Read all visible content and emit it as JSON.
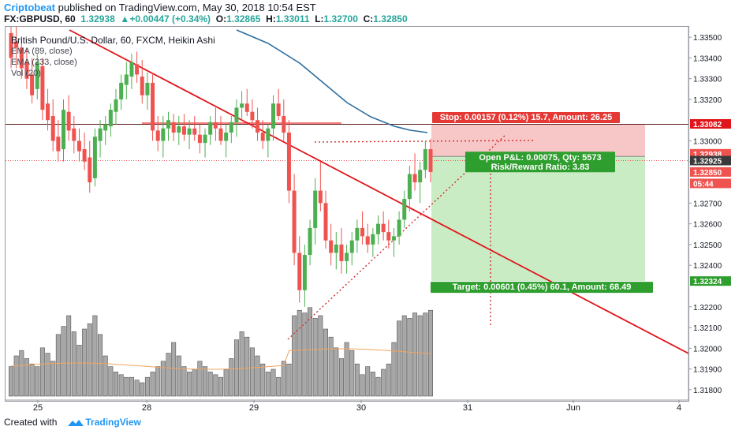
{
  "header": {
    "brand": "Criptobeat",
    "published": " published on TradingView.com, May 30, 2018 10:54 EST",
    "symbol": "FX:GBPUSD, 60",
    "last": "1.32938",
    "change_arrow": "▲",
    "change": "+0.00447 (+0.34%)",
    "o_label": "O:",
    "o": "1.32865",
    "h_label": "H:",
    "h": "1.33011",
    "l_label": "L:",
    "l": "1.32700",
    "c_label": "C:",
    "c": "1.32850"
  },
  "legend": {
    "main": "British Pound/U.S. Dollar, 60, FXCM, Heikin Ashi",
    "ema89": "EMA (89, close)",
    "ema233": "EMA (233, close)",
    "vol": "Vol (20)"
  },
  "footer": {
    "created": "Created with",
    "tv": "TradingView"
  },
  "colors": {
    "up": "#4caf50",
    "down": "#ef5350",
    "ema": "#2e6e9e",
    "trend": "#e0161b",
    "volume": "#a8a8a8",
    "stop_zone": "#f7c6c6",
    "target_zone": "#c9ecc4"
  },
  "chart_data": {
    "type": "candlestick",
    "title": "British Pound/U.S. Dollar, 60, FXCM, Heikin Ashi",
    "x_ticks": [
      "25",
      "28",
      "29",
      "30",
      "31",
      "Jun",
      "4"
    ],
    "y_ticks": [
      "1.33500",
      "1.33400",
      "1.33300",
      "1.33200",
      "1.33000",
      "1.32900",
      "1.32700",
      "1.32600",
      "1.32500",
      "1.32400",
      "1.32200",
      "1.32100",
      "1.32000",
      "1.31900",
      "1.31800"
    ],
    "ylim": [
      1.3175,
      1.3355
    ],
    "price_tags": [
      {
        "label": "1.33082",
        "value": 1.33082,
        "color": "#e0161b"
      },
      {
        "label": "1.32938",
        "value": 1.32938,
        "color": "#ef5350"
      },
      {
        "label": "1.32925",
        "value": 1.32905,
        "color": "#3a3a3a"
      },
      {
        "label": "1.32850",
        "value": 1.3285,
        "color": "#ef5350"
      },
      {
        "label": "05:44",
        "value": 1.32795,
        "color": "#ef5350"
      },
      {
        "label": "1.32324",
        "value": 1.32324,
        "color": "#2e9e2e"
      }
    ],
    "position": {
      "entry": 1.32925,
      "stop": 1.33082,
      "target": 1.32324,
      "stop_label": "Stop: 0.00157 (0.12%) 15.7, Amount: 26.25",
      "pnl_label": "Open P&L: 0.00075, Qty: 5573",
      "rr_label": "Risk/Reward Ratio: 3.83",
      "target_label": "Target: 0.00601 (0.45%) 60.1, Amount: 68.49"
    },
    "horizontal_level": 1.3308,
    "candles": [
      [
        1.3352,
        1.336,
        1.3335,
        1.334
      ],
      [
        1.3348,
        1.3356,
        1.3335,
        1.3345
      ],
      [
        1.3345,
        1.335,
        1.333,
        1.3335
      ],
      [
        1.3338,
        1.3345,
        1.3325,
        1.333
      ],
      [
        1.3332,
        1.334,
        1.3318,
        1.3322
      ],
      [
        1.3325,
        1.3342,
        1.332,
        1.3338
      ],
      [
        1.3336,
        1.334,
        1.331,
        1.3315
      ],
      [
        1.3318,
        1.3325,
        1.3305,
        1.331
      ],
      [
        1.3312,
        1.332,
        1.3295,
        1.33
      ],
      [
        1.3302,
        1.331,
        1.329,
        1.3295
      ],
      [
        1.3296,
        1.332,
        1.329,
        1.3315
      ],
      [
        1.3314,
        1.3322,
        1.33,
        1.3305
      ],
      [
        1.3306,
        1.3312,
        1.3294,
        1.33
      ],
      [
        1.33,
        1.3306,
        1.329,
        1.3295
      ],
      [
        1.3296,
        1.3304,
        1.3286,
        1.329
      ],
      [
        1.3292,
        1.33,
        1.3275,
        1.328
      ],
      [
        1.3282,
        1.3306,
        1.3278,
        1.3302
      ],
      [
        1.33,
        1.331,
        1.3292,
        1.3306
      ],
      [
        1.3305,
        1.3312,
        1.3298,
        1.3308
      ],
      [
        1.3307,
        1.3318,
        1.3302,
        1.3315
      ],
      [
        1.3314,
        1.3325,
        1.3308,
        1.332
      ],
      [
        1.332,
        1.3332,
        1.3315,
        1.3328
      ],
      [
        1.3327,
        1.3338,
        1.332,
        1.3332
      ],
      [
        1.3331,
        1.3342,
        1.3325,
        1.3338
      ],
      [
        1.3337,
        1.3343,
        1.3328,
        1.3332
      ],
      [
        1.3331,
        1.3339,
        1.3318,
        1.3322
      ],
      [
        1.3322,
        1.3333,
        1.3315,
        1.3328
      ],
      [
        1.3328,
        1.3333,
        1.33,
        1.3305
      ],
      [
        1.3305,
        1.3312,
        1.3295,
        1.33
      ],
      [
        1.33,
        1.3312,
        1.3292,
        1.3306
      ],
      [
        1.3306,
        1.3314,
        1.33,
        1.331
      ],
      [
        1.3309,
        1.3313,
        1.33,
        1.3304
      ],
      [
        1.3304,
        1.3312,
        1.3298,
        1.3307
      ],
      [
        1.3307,
        1.3313,
        1.33,
        1.3303
      ],
      [
        1.3303,
        1.331,
        1.3296,
        1.3306
      ],
      [
        1.3306,
        1.3312,
        1.33,
        1.3303
      ],
      [
        1.3303,
        1.3308,
        1.3294,
        1.3299
      ],
      [
        1.3299,
        1.3306,
        1.3292,
        1.3303
      ],
      [
        1.3303,
        1.3312,
        1.3298,
        1.3309
      ],
      [
        1.3309,
        1.3316,
        1.33,
        1.3306
      ],
      [
        1.3306,
        1.3312,
        1.3298,
        1.33
      ],
      [
        1.33,
        1.3308,
        1.3292,
        1.3304
      ],
      [
        1.3304,
        1.3312,
        1.3299,
        1.3309
      ],
      [
        1.3309,
        1.332,
        1.3302,
        1.3316
      ],
      [
        1.3316,
        1.3324,
        1.331,
        1.3318
      ],
      [
        1.3318,
        1.3325,
        1.3312,
        1.3314
      ],
      [
        1.3314,
        1.332,
        1.3306,
        1.331
      ],
      [
        1.331,
        1.3316,
        1.33,
        1.3304
      ],
      [
        1.3304,
        1.331,
        1.3296,
        1.33
      ],
      [
        1.33,
        1.3308,
        1.3292,
        1.3306
      ],
      [
        1.3306,
        1.3322,
        1.33,
        1.3318
      ],
      [
        1.3318,
        1.3325,
        1.331,
        1.3312
      ],
      [
        1.3312,
        1.332,
        1.33,
        1.3304
      ],
      [
        1.3304,
        1.331,
        1.327,
        1.3276
      ],
      [
        1.3276,
        1.3284,
        1.324,
        1.3246
      ],
      [
        1.3246,
        1.3254,
        1.3222,
        1.3228
      ],
      [
        1.3228,
        1.325,
        1.322,
        1.3245
      ],
      [
        1.3245,
        1.3262,
        1.324,
        1.3258
      ],
      [
        1.3258,
        1.3282,
        1.325,
        1.3276
      ],
      [
        1.3276,
        1.329,
        1.3266,
        1.327
      ],
      [
        1.327,
        1.3276,
        1.3248,
        1.3252
      ],
      [
        1.3252,
        1.326,
        1.324,
        1.3246
      ],
      [
        1.3246,
        1.3256,
        1.3238,
        1.325
      ],
      [
        1.325,
        1.3258,
        1.3236,
        1.3242
      ],
      [
        1.3242,
        1.325,
        1.3236,
        1.3246
      ],
      [
        1.3246,
        1.3256,
        1.324,
        1.3252
      ],
      [
        1.3252,
        1.3262,
        1.3246,
        1.3258
      ],
      [
        1.3258,
        1.3266,
        1.325,
        1.3254
      ],
      [
        1.3254,
        1.326,
        1.3246,
        1.325
      ],
      [
        1.325,
        1.3258,
        1.3244,
        1.3255
      ],
      [
        1.3255,
        1.3264,
        1.325,
        1.326
      ],
      [
        1.326,
        1.3266,
        1.3252,
        1.3256
      ],
      [
        1.3256,
        1.3262,
        1.3248,
        1.3252
      ],
      [
        1.3252,
        1.3258,
        1.3244,
        1.3254
      ],
      [
        1.3254,
        1.3266,
        1.325,
        1.3262
      ],
      [
        1.3262,
        1.3276,
        1.3258,
        1.3272
      ],
      [
        1.3272,
        1.3288,
        1.3266,
        1.3284
      ],
      [
        1.3284,
        1.3294,
        1.3276,
        1.328
      ],
      [
        1.328,
        1.329,
        1.327,
        1.3286
      ],
      [
        1.3286,
        1.33,
        1.3282,
        1.3296
      ],
      [
        1.3296,
        1.3301,
        1.328,
        1.3285
      ]
    ],
    "candle_x": [
      0,
      1,
      2,
      3,
      4,
      5,
      6,
      7,
      8,
      9,
      10,
      11,
      12,
      13,
      14,
      15,
      16,
      17,
      18,
      19,
      20,
      21,
      22,
      23,
      24,
      25,
      26,
      27,
      28,
      29,
      30,
      31,
      32,
      33,
      34,
      35,
      36,
      37,
      38,
      39,
      40,
      41,
      42,
      43,
      44,
      45,
      46,
      47,
      48,
      49,
      50,
      51,
      52,
      53,
      54,
      55,
      56,
      57,
      58,
      59,
      60,
      61,
      62,
      63,
      64,
      65,
      66,
      67,
      68,
      69,
      70,
      71,
      72,
      73,
      74,
      75,
      76,
      77,
      78,
      79,
      80
    ]
  }
}
